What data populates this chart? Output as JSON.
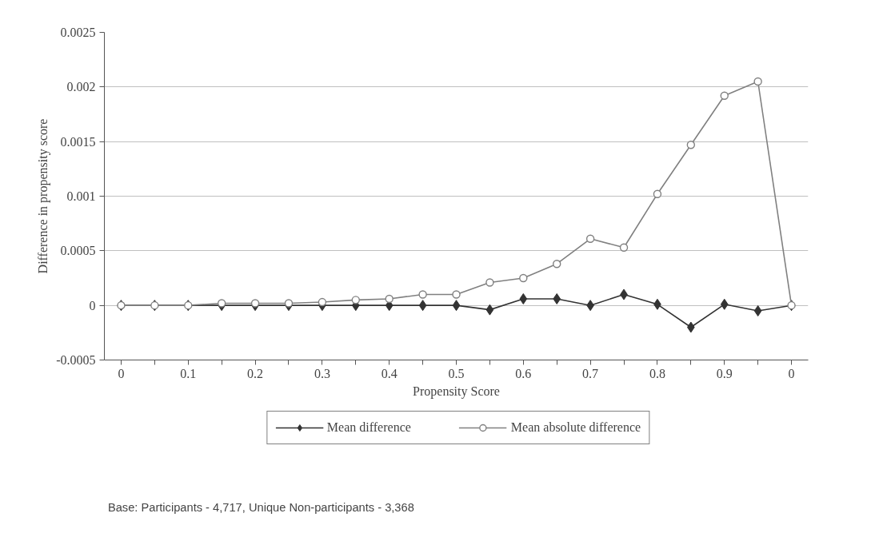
{
  "chart_data": {
    "type": "line",
    "xlabel": "Propensity Score",
    "ylabel": "Difference in propensity score",
    "categories": [
      "0",
      null,
      "0.1",
      null,
      "0.2",
      null,
      "0.3",
      null,
      "0.4",
      null,
      "0.5",
      null,
      "0.6",
      null,
      "0.7",
      null,
      "0.8",
      null,
      "0.9",
      null,
      "0"
    ],
    "series": [
      {
        "name": "Mean difference",
        "color": "#333333",
        "marker": "diamond",
        "values": [
          0,
          0,
          0,
          0,
          0,
          0,
          0,
          0,
          0,
          0,
          0,
          -4e-05,
          6e-05,
          6e-05,
          0,
          0.0001,
          1e-05,
          -0.0002,
          1e-05,
          -5e-05,
          0
        ]
      },
      {
        "name": "Mean absolute difference",
        "color": "#808080",
        "marker": "circle",
        "values": [
          0,
          0,
          0,
          2e-05,
          2e-05,
          2e-05,
          3e-05,
          5e-05,
          6e-05,
          0.0001,
          0.0001,
          0.00021,
          0.00025,
          0.00038,
          0.00061,
          0.00053,
          0.00102,
          0.00147,
          0.00192,
          0.00205,
          0
        ]
      }
    ],
    "ylim": [
      -0.0005,
      0.0025
    ],
    "yticks": [
      -0.0005,
      0,
      0.0005,
      0.001,
      0.0015,
      0.002,
      0.0025
    ],
    "grid": "y",
    "legend": "bottom",
    "line_style": "solid",
    "annotations": [
      "Base: Participants - 4,717, Unique Non-participants - 3,368"
    ]
  }
}
